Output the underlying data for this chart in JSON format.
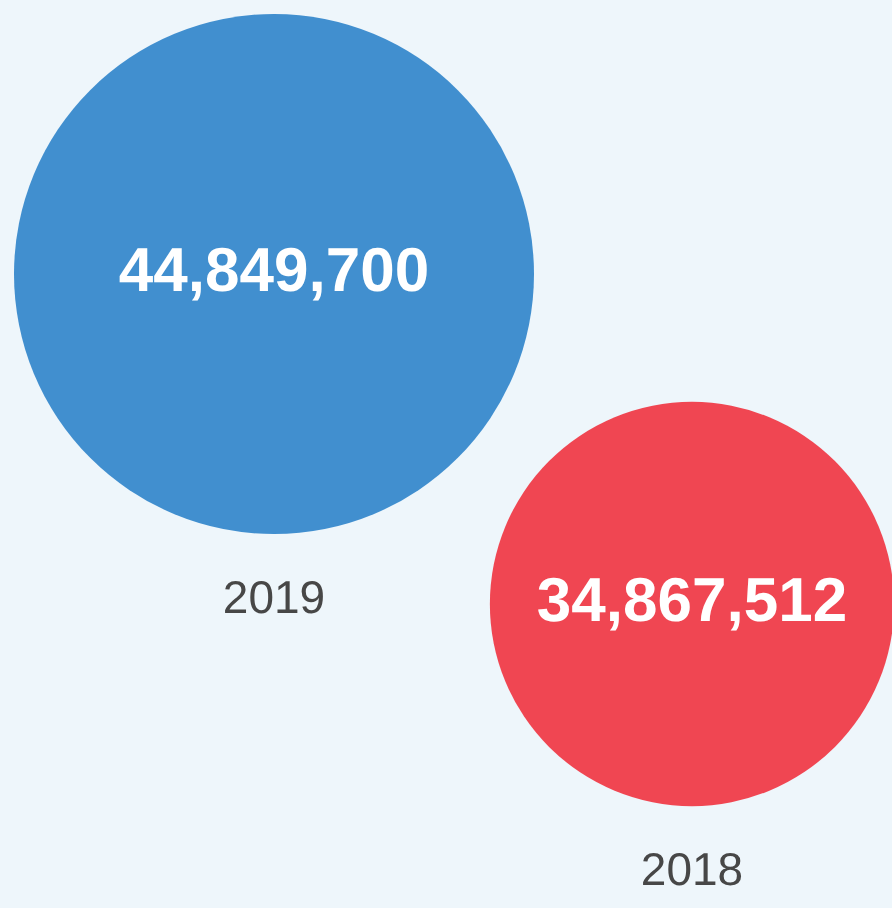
{
  "chart_data": {
    "type": "other",
    "categories": [
      "2019",
      "2018"
    ],
    "values": [
      44849700,
      34867512
    ],
    "value_labels": [
      "44,849,700",
      "34,867,512"
    ],
    "colors": [
      "#418fcf",
      "#f04652"
    ]
  }
}
